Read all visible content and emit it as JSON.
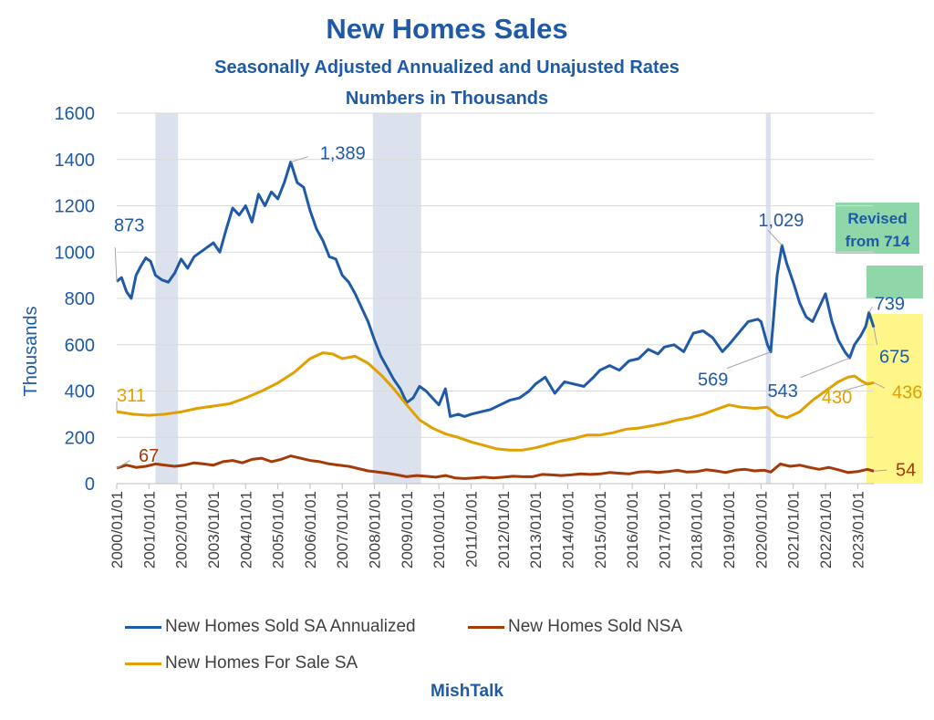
{
  "title": "New Homes Sales",
  "subtitle": "Seasonally Adjusted Annualized and Unajusted Rates",
  "subtitle2": "Numbers in Thousands",
  "credit": "MishTalk",
  "colors": {
    "sa": "#1f5aa6",
    "nsa": "#a33a08",
    "forsale": "#e0a000",
    "recession": "#dbe2ee",
    "grid": "#d9d9d9",
    "green_box": "#8fd6a8",
    "yellow_box": "#fff68a"
  },
  "chart_data": {
    "type": "line",
    "ylabel": "Thousands",
    "ylim": [
      0,
      1600
    ],
    "yticks": [
      0,
      200,
      400,
      600,
      800,
      1000,
      1200,
      1400,
      1600
    ],
    "xlim": [
      2000.0,
      2023.5
    ],
    "xtick_labels": [
      "2000/01/01",
      "2001/01/01",
      "2002/01/01",
      "2003/01/01",
      "2004/01/01",
      "2005/01/01",
      "2006/01/01",
      "2007/01/01",
      "2008/01/01",
      "2009/01/01",
      "2010/01/01",
      "2011/01/01",
      "2012/01/01",
      "2013/01/01",
      "2014/01/01",
      "2015/01/01",
      "2016/01/01",
      "2017/01/01",
      "2018/01/01",
      "2019/01/01",
      "2020/01/01",
      "2021/01/01",
      "2022/01/01",
      "2023/01/01"
    ],
    "recessions": [
      [
        2001.2,
        2001.9
      ],
      [
        2007.95,
        2009.45
      ],
      [
        2020.15,
        2020.3
      ]
    ],
    "series": [
      {
        "name": "New Homes Sold SA Annualized",
        "color": "#1f5aa6",
        "points": [
          [
            2000.0,
            873
          ],
          [
            2000.15,
            890
          ],
          [
            2000.3,
            830
          ],
          [
            2000.45,
            800
          ],
          [
            2000.6,
            900
          ],
          [
            2000.75,
            940
          ],
          [
            2000.9,
            975
          ],
          [
            2001.05,
            960
          ],
          [
            2001.2,
            900
          ],
          [
            2001.4,
            880
          ],
          [
            2001.6,
            870
          ],
          [
            2001.8,
            910
          ],
          [
            2002.0,
            970
          ],
          [
            2002.2,
            930
          ],
          [
            2002.4,
            980
          ],
          [
            2002.6,
            1000
          ],
          [
            2002.8,
            1020
          ],
          [
            2003.0,
            1040
          ],
          [
            2003.2,
            1000
          ],
          [
            2003.4,
            1100
          ],
          [
            2003.6,
            1190
          ],
          [
            2003.8,
            1160
          ],
          [
            2004.0,
            1200
          ],
          [
            2004.2,
            1130
          ],
          [
            2004.4,
            1250
          ],
          [
            2004.6,
            1200
          ],
          [
            2004.8,
            1260
          ],
          [
            2005.0,
            1230
          ],
          [
            2005.2,
            1300
          ],
          [
            2005.4,
            1389
          ],
          [
            2005.6,
            1300
          ],
          [
            2005.8,
            1280
          ],
          [
            2006.0,
            1180
          ],
          [
            2006.2,
            1100
          ],
          [
            2006.4,
            1050
          ],
          [
            2006.6,
            980
          ],
          [
            2006.8,
            970
          ],
          [
            2007.0,
            900
          ],
          [
            2007.2,
            870
          ],
          [
            2007.4,
            820
          ],
          [
            2007.6,
            760
          ],
          [
            2007.8,
            700
          ],
          [
            2008.0,
            620
          ],
          [
            2008.2,
            550
          ],
          [
            2008.4,
            500
          ],
          [
            2008.6,
            450
          ],
          [
            2008.8,
            410
          ],
          [
            2009.0,
            350
          ],
          [
            2009.2,
            370
          ],
          [
            2009.4,
            420
          ],
          [
            2009.6,
            400
          ],
          [
            2009.8,
            370
          ],
          [
            2010.0,
            340
          ],
          [
            2010.2,
            410
          ],
          [
            2010.35,
            290
          ],
          [
            2010.6,
            300
          ],
          [
            2010.8,
            290
          ],
          [
            2011.0,
            300
          ],
          [
            2011.3,
            310
          ],
          [
            2011.6,
            320
          ],
          [
            2011.9,
            340
          ],
          [
            2012.2,
            360
          ],
          [
            2012.5,
            370
          ],
          [
            2012.8,
            400
          ],
          [
            2013.0,
            430
          ],
          [
            2013.3,
            460
          ],
          [
            2013.6,
            390
          ],
          [
            2013.9,
            440
          ],
          [
            2014.2,
            430
          ],
          [
            2014.5,
            420
          ],
          [
            2014.8,
            460
          ],
          [
            2015.0,
            490
          ],
          [
            2015.3,
            510
          ],
          [
            2015.6,
            490
          ],
          [
            2015.9,
            530
          ],
          [
            2016.2,
            540
          ],
          [
            2016.5,
            580
          ],
          [
            2016.8,
            560
          ],
          [
            2017.0,
            590
          ],
          [
            2017.3,
            600
          ],
          [
            2017.6,
            570
          ],
          [
            2017.9,
            650
          ],
          [
            2018.2,
            660
          ],
          [
            2018.5,
            630
          ],
          [
            2018.8,
            570
          ],
          [
            2019.0,
            600
          ],
          [
            2019.3,
            650
          ],
          [
            2019.6,
            700
          ],
          [
            2019.9,
            710
          ],
          [
            2020.0,
            700
          ],
          [
            2020.2,
            600
          ],
          [
            2020.3,
            569
          ],
          [
            2020.5,
            900
          ],
          [
            2020.65,
            1029
          ],
          [
            2020.8,
            950
          ],
          [
            2021.0,
            870
          ],
          [
            2021.2,
            780
          ],
          [
            2021.4,
            720
          ],
          [
            2021.6,
            700
          ],
          [
            2021.8,
            760
          ],
          [
            2022.0,
            820
          ],
          [
            2022.2,
            700
          ],
          [
            2022.4,
            620
          ],
          [
            2022.6,
            570
          ],
          [
            2022.75,
            543
          ],
          [
            2022.9,
            600
          ],
          [
            2023.1,
            640
          ],
          [
            2023.25,
            680
          ],
          [
            2023.35,
            739
          ],
          [
            2023.5,
            675
          ]
        ]
      },
      {
        "name": "New Homes Sold NSA",
        "color": "#a33a08",
        "points": [
          [
            2000.0,
            67
          ],
          [
            2000.3,
            80
          ],
          [
            2000.6,
            70
          ],
          [
            2000.9,
            75
          ],
          [
            2001.2,
            85
          ],
          [
            2001.5,
            80
          ],
          [
            2001.8,
            75
          ],
          [
            2002.1,
            80
          ],
          [
            2002.4,
            90
          ],
          [
            2002.7,
            85
          ],
          [
            2003.0,
            80
          ],
          [
            2003.3,
            95
          ],
          [
            2003.6,
            100
          ],
          [
            2003.9,
            90
          ],
          [
            2004.2,
            105
          ],
          [
            2004.5,
            110
          ],
          [
            2004.8,
            95
          ],
          [
            2005.1,
            105
          ],
          [
            2005.4,
            120
          ],
          [
            2005.7,
            110
          ],
          [
            2006.0,
            100
          ],
          [
            2006.3,
            95
          ],
          [
            2006.6,
            85
          ],
          [
            2006.9,
            80
          ],
          [
            2007.2,
            75
          ],
          [
            2007.5,
            65
          ],
          [
            2007.8,
            55
          ],
          [
            2008.1,
            50
          ],
          [
            2008.4,
            45
          ],
          [
            2008.7,
            38
          ],
          [
            2009.0,
            30
          ],
          [
            2009.3,
            35
          ],
          [
            2009.6,
            32
          ],
          [
            2009.9,
            28
          ],
          [
            2010.2,
            35
          ],
          [
            2010.5,
            25
          ],
          [
            2010.8,
            22
          ],
          [
            2011.1,
            25
          ],
          [
            2011.4,
            28
          ],
          [
            2011.7,
            25
          ],
          [
            2012.0,
            28
          ],
          [
            2012.3,
            32
          ],
          [
            2012.6,
            30
          ],
          [
            2012.9,
            30
          ],
          [
            2013.2,
            40
          ],
          [
            2013.5,
            38
          ],
          [
            2013.8,
            35
          ],
          [
            2014.1,
            38
          ],
          [
            2014.4,
            42
          ],
          [
            2014.7,
            40
          ],
          [
            2015.0,
            42
          ],
          [
            2015.3,
            48
          ],
          [
            2015.6,
            45
          ],
          [
            2015.9,
            42
          ],
          [
            2016.2,
            50
          ],
          [
            2016.5,
            52
          ],
          [
            2016.8,
            48
          ],
          [
            2017.1,
            52
          ],
          [
            2017.4,
            58
          ],
          [
            2017.7,
            50
          ],
          [
            2018.0,
            52
          ],
          [
            2018.3,
            60
          ],
          [
            2018.6,
            55
          ],
          [
            2018.9,
            48
          ],
          [
            2019.2,
            58
          ],
          [
            2019.5,
            62
          ],
          [
            2019.8,
            55
          ],
          [
            2020.1,
            58
          ],
          [
            2020.3,
            50
          ],
          [
            2020.6,
            85
          ],
          [
            2020.9,
            75
          ],
          [
            2021.2,
            80
          ],
          [
            2021.5,
            70
          ],
          [
            2021.8,
            62
          ],
          [
            2022.1,
            70
          ],
          [
            2022.4,
            60
          ],
          [
            2022.7,
            48
          ],
          [
            2023.0,
            52
          ],
          [
            2023.3,
            62
          ],
          [
            2023.5,
            54
          ]
        ]
      },
      {
        "name": "New Homes For Sale SA",
        "color": "#e0a000",
        "points": [
          [
            2000.0,
            311
          ],
          [
            2000.5,
            300
          ],
          [
            2001.0,
            295
          ],
          [
            2001.5,
            300
          ],
          [
            2002.0,
            310
          ],
          [
            2002.5,
            325
          ],
          [
            2003.0,
            335
          ],
          [
            2003.5,
            345
          ],
          [
            2004.0,
            370
          ],
          [
            2004.5,
            400
          ],
          [
            2005.0,
            435
          ],
          [
            2005.5,
            480
          ],
          [
            2006.0,
            540
          ],
          [
            2006.4,
            565
          ],
          [
            2006.7,
            560
          ],
          [
            2007.0,
            540
          ],
          [
            2007.4,
            550
          ],
          [
            2007.8,
            520
          ],
          [
            2008.2,
            470
          ],
          [
            2008.6,
            410
          ],
          [
            2009.0,
            340
          ],
          [
            2009.4,
            275
          ],
          [
            2009.8,
            240
          ],
          [
            2010.2,
            215
          ],
          [
            2010.6,
            200
          ],
          [
            2011.0,
            180
          ],
          [
            2011.4,
            165
          ],
          [
            2011.8,
            150
          ],
          [
            2012.2,
            145
          ],
          [
            2012.6,
            145
          ],
          [
            2013.0,
            155
          ],
          [
            2013.4,
            170
          ],
          [
            2013.8,
            185
          ],
          [
            2014.2,
            195
          ],
          [
            2014.6,
            210
          ],
          [
            2015.0,
            210
          ],
          [
            2015.4,
            220
          ],
          [
            2015.8,
            235
          ],
          [
            2016.2,
            240
          ],
          [
            2016.6,
            250
          ],
          [
            2017.0,
            260
          ],
          [
            2017.4,
            275
          ],
          [
            2017.8,
            285
          ],
          [
            2018.2,
            300
          ],
          [
            2018.6,
            320
          ],
          [
            2019.0,
            340
          ],
          [
            2019.4,
            330
          ],
          [
            2019.8,
            325
          ],
          [
            2020.2,
            330
          ],
          [
            2020.5,
            295
          ],
          [
            2020.8,
            285
          ],
          [
            2021.2,
            310
          ],
          [
            2021.6,
            360
          ],
          [
            2022.0,
            400
          ],
          [
            2022.4,
            440
          ],
          [
            2022.7,
            460
          ],
          [
            2022.9,
            465
          ],
          [
            2023.1,
            445
          ],
          [
            2023.3,
            430
          ],
          [
            2023.5,
            436
          ]
        ]
      }
    ],
    "annotations": [
      {
        "text": "873",
        "series": 0,
        "at": [
          2000.0,
          873
        ]
      },
      {
        "text": "1,389",
        "series": 0,
        "at": [
          2005.4,
          1389
        ]
      },
      {
        "text": "1,029",
        "series": 0,
        "at": [
          2020.65,
          1029
        ]
      },
      {
        "text": "569",
        "series": 0,
        "at": [
          2020.3,
          569
        ]
      },
      {
        "text": "543",
        "series": 0,
        "at": [
          2022.75,
          543
        ]
      },
      {
        "text": "739",
        "series": 0,
        "at": [
          2023.35,
          739
        ]
      },
      {
        "text": "675",
        "series": 0,
        "at": [
          2023.5,
          675
        ]
      },
      {
        "text": "311",
        "series": 2,
        "at": [
          2000.0,
          311
        ]
      },
      {
        "text": "430",
        "series": 2,
        "at": [
          2023.3,
          430
        ]
      },
      {
        "text": "436",
        "series": 2,
        "at": [
          2023.5,
          436
        ]
      },
      {
        "text": "67",
        "series": 1,
        "at": [
          2000.0,
          67
        ]
      },
      {
        "text": "54",
        "series": 1,
        "at": [
          2023.5,
          54
        ]
      }
    ],
    "callout": {
      "line1": "Revised",
      "line2": "from 714"
    }
  }
}
